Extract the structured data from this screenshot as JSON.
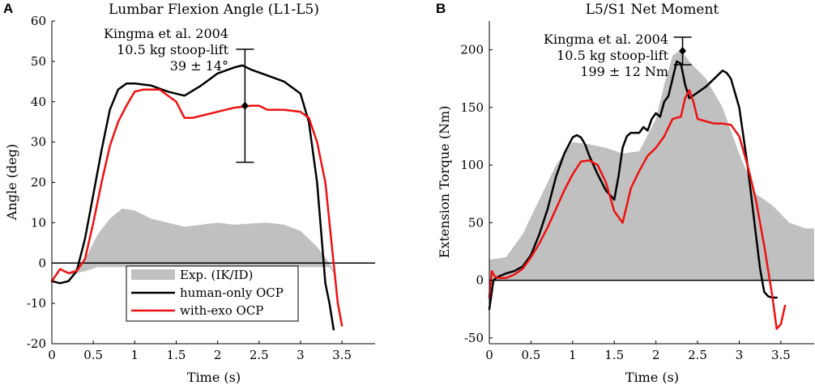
{
  "chart_data": [
    {
      "panel": "A",
      "type": "line",
      "title": "Lumbar Flexion Angle (L1-L5)",
      "xlabel": "Time (s)",
      "ylabel": "Angle (deg)",
      "xlim": [
        0,
        3.9
      ],
      "ylim": [
        -20,
        60
      ],
      "xticks": [
        0,
        0.5,
        1,
        1.5,
        2,
        2.5,
        3,
        3.5
      ],
      "xtick_labels": [
        "0",
        "0.5",
        "1",
        "1.5",
        "2",
        "2.5",
        "3",
        "3.5"
      ],
      "yticks": [
        -20,
        -10,
        0,
        10,
        20,
        30,
        40,
        50,
        60
      ],
      "ytick_labels": [
        "-20",
        "-10",
        "0",
        "10",
        "20",
        "30",
        "40",
        "50",
        "60"
      ],
      "zero_line": true,
      "band": {
        "name": "Exp. (IK/ID)",
        "color": "#c0c0c0",
        "x": [
          0,
          0.2,
          0.4,
          0.55,
          0.7,
          0.85,
          1.0,
          1.2,
          1.4,
          1.6,
          1.8,
          2.0,
          2.2,
          2.4,
          2.6,
          2.8,
          3.0,
          3.2,
          3.35,
          3.45,
          3.55,
          3.7,
          3.9
        ],
        "upper": [
          -4,
          -3,
          1,
          7,
          11,
          13.5,
          13,
          11,
          10,
          9,
          9.5,
          10,
          9.5,
          9.8,
          10,
          9.5,
          8,
          4,
          0,
          -4,
          -7.5,
          -8,
          -8.5
        ],
        "lower": [
          -4,
          -3,
          -2,
          -1,
          -1,
          -1,
          -1,
          -1,
          -1,
          -1,
          -1,
          -1,
          -1,
          -1,
          -1,
          -1,
          -1,
          -1,
          -1,
          -4,
          -7.5,
          -8,
          -8.5
        ]
      },
      "series": [
        {
          "name": "human-only OCP",
          "color": "#000000",
          "x": [
            0,
            0.1,
            0.2,
            0.3,
            0.4,
            0.5,
            0.6,
            0.7,
            0.8,
            0.9,
            1.0,
            1.2,
            1.4,
            1.6,
            1.8,
            2.0,
            2.2,
            2.3,
            2.4,
            2.6,
            2.8,
            3.0,
            3.1,
            3.2,
            3.3,
            3.35,
            3.4
          ],
          "y": [
            -4.5,
            -5,
            -4.5,
            -2,
            6,
            17,
            28,
            38,
            43,
            44.5,
            44.5,
            44,
            42.5,
            41.5,
            44,
            47,
            48.5,
            49,
            48,
            46.5,
            45,
            42,
            35,
            20,
            -5,
            -10,
            -16.5
          ]
        },
        {
          "name": "with-exo OCP",
          "color": "#ee1111",
          "x": [
            0,
            0.05,
            0.1,
            0.2,
            0.3,
            0.4,
            0.5,
            0.6,
            0.7,
            0.8,
            0.9,
            1.0,
            1.1,
            1.3,
            1.5,
            1.6,
            1.7,
            1.8,
            2.0,
            2.2,
            2.4,
            2.5,
            2.6,
            2.8,
            3.0,
            3.1,
            3.2,
            3.3,
            3.4,
            3.45,
            3.5
          ],
          "y": [
            -4.5,
            -3,
            -1.5,
            -2.5,
            -2,
            1,
            10,
            20,
            29,
            35,
            39,
            42.5,
            43,
            43,
            40,
            36,
            36,
            36.5,
            37.5,
            38.5,
            39,
            39,
            38,
            38,
            37.5,
            36,
            30,
            20,
            0,
            -10,
            -15.5
          ]
        }
      ],
      "reference": {
        "label_lines": [
          "Kingma et al. 2004",
          "10.5 kg stoop-lift",
          "39 ± 14°"
        ],
        "x": 2.33,
        "mean": 39,
        "sd": 14
      },
      "legend": {
        "position": "bottom-center",
        "entries": [
          "Exp. (IK/ID)",
          "human-only OCP",
          "with-exo OCP"
        ]
      }
    },
    {
      "panel": "B",
      "type": "line",
      "title": "L5/S1 Net Moment",
      "xlabel": "Time (s)",
      "ylabel": "Extension Torque (Nm)",
      "xlim": [
        0,
        3.9
      ],
      "ylim": [
        -55,
        225
      ],
      "xticks": [
        0,
        0.5,
        1,
        1.5,
        2,
        2.5,
        3,
        3.5
      ],
      "xtick_labels": [
        "0",
        "0.5",
        "1",
        "1.5",
        "2",
        "2.5",
        "3",
        "3.5"
      ],
      "yticks": [
        -50,
        0,
        50,
        100,
        150,
        200
      ],
      "ytick_labels": [
        "-50",
        "0",
        "50",
        "100",
        "150",
        "200"
      ],
      "zero_line": true,
      "band": {
        "name": "Exp. (IK/ID)",
        "color": "#c0c0c0",
        "x": [
          0,
          0.2,
          0.4,
          0.6,
          0.8,
          1.0,
          1.2,
          1.4,
          1.6,
          1.8,
          2.0,
          2.1,
          2.2,
          2.3,
          2.4,
          2.6,
          2.8,
          3.0,
          3.2,
          3.4,
          3.6,
          3.8,
          3.9
        ],
        "upper": [
          18,
          20,
          40,
          70,
          100,
          120,
          118,
          115,
          110,
          112,
          140,
          170,
          195,
          200,
          190,
          175,
          150,
          110,
          75,
          65,
          50,
          45,
          45
        ],
        "lower": [
          0,
          0,
          0,
          0,
          0,
          0,
          0,
          0,
          0,
          0,
          0,
          0,
          0,
          0,
          0,
          0,
          0,
          0,
          0,
          0,
          0,
          0,
          0
        ]
      },
      "series": [
        {
          "name": "human-only OCP",
          "color": "#000000",
          "x": [
            0,
            0.05,
            0.1,
            0.2,
            0.3,
            0.4,
            0.5,
            0.6,
            0.7,
            0.8,
            0.9,
            1.0,
            1.05,
            1.1,
            1.15,
            1.2,
            1.3,
            1.4,
            1.5,
            1.55,
            1.6,
            1.65,
            1.7,
            1.8,
            1.85,
            1.9,
            1.95,
            2.0,
            2.05,
            2.1,
            2.15,
            2.2,
            2.25,
            2.3,
            2.35,
            2.4,
            2.5,
            2.6,
            2.7,
            2.8,
            2.85,
            2.9,
            3.0,
            3.1,
            3.2,
            3.25,
            3.3,
            3.35,
            3.4,
            3.45
          ],
          "y": [
            -25,
            0,
            3,
            6,
            8,
            12,
            22,
            40,
            62,
            90,
            110,
            124,
            126,
            124,
            118,
            108,
            92,
            78,
            70,
            90,
            115,
            125,
            128,
            128,
            133,
            130,
            140,
            145,
            142,
            155,
            160,
            175,
            190,
            188,
            170,
            158,
            163,
            168,
            175,
            182,
            180,
            175,
            150,
            100,
            40,
            10,
            -10,
            -14,
            -15,
            -15
          ]
        },
        {
          "name": "with-exo OCP",
          "color": "#ee1111",
          "x": [
            0,
            0.03,
            0.07,
            0.12,
            0.2,
            0.3,
            0.4,
            0.5,
            0.6,
            0.7,
            0.8,
            0.9,
            1.0,
            1.1,
            1.2,
            1.3,
            1.4,
            1.5,
            1.6,
            1.65,
            1.7,
            1.8,
            1.9,
            2.0,
            2.1,
            2.2,
            2.3,
            2.35,
            2.4,
            2.45,
            2.5,
            2.6,
            2.7,
            2.8,
            2.9,
            3.0,
            3.1,
            3.2,
            3.3,
            3.4,
            3.45,
            3.5,
            3.55
          ],
          "y": [
            -15,
            8,
            3,
            2,
            2,
            5,
            10,
            20,
            32,
            46,
            62,
            78,
            92,
            103,
            104,
            100,
            85,
            60,
            50,
            65,
            80,
            95,
            108,
            115,
            125,
            140,
            142,
            158,
            165,
            155,
            140,
            138,
            136,
            136,
            135,
            125,
            100,
            70,
            30,
            -15,
            -42,
            -38,
            -22
          ]
        }
      ],
      "reference": {
        "label_lines": [
          "Kingma et al. 2004",
          "10.5 kg stoop-lift",
          "199 ± 12 Nm"
        ],
        "x": 2.32,
        "mean": 199,
        "sd": 12
      }
    }
  ]
}
